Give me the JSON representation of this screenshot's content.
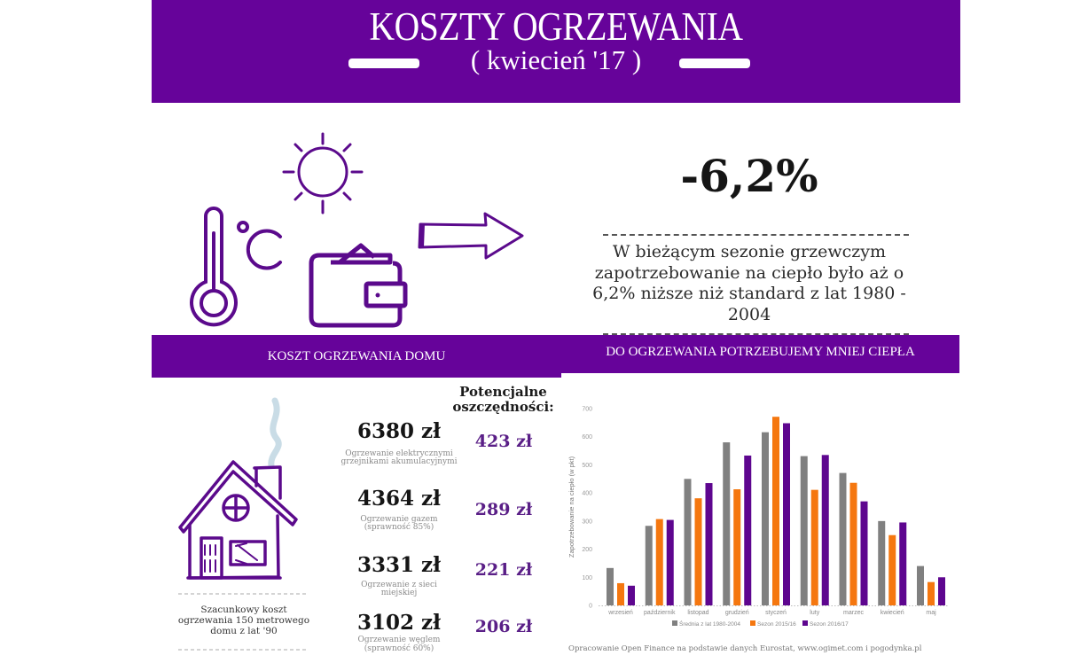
{
  "header": {
    "title": "KOSZTY OGRZEWANIA",
    "subtitle": "( kwiecień '17 )"
  },
  "icons": [
    "sun-icon",
    "thermometer-icon",
    "celsius-icon",
    "wallet-icon",
    "arrow-right-icon"
  ],
  "stat": {
    "value": "-6,2%",
    "description": "W bieżącym sezonie grzewczym zapotrzebowanie na ciepło było aż o 6,2% niższe niż standard z lat 1980 - 2004"
  },
  "sections": {
    "left_title": "KOSZT OGRZEWANIA DOMU",
    "right_title": "DO OGRZEWANIA POTRZEBUJEMY MNIEJ CIEPŁA"
  },
  "house": {
    "caption": "Szacunkowy koszt ogrzewania 150 metrowego domu z lat '90"
  },
  "costs": {
    "savings_header": "Potencjalne oszczędności:",
    "items": [
      {
        "value": "6380 zł",
        "desc_line1": "Ogrzewanie elektrycznymi",
        "desc_line2": "grzejnikami akumulacyjnymi",
        "saving": "423 zł"
      },
      {
        "value": "4364 zł",
        "desc_line1": "Ogrzewanie gazem",
        "desc_line2": "(sprawność 85%)",
        "saving": "289 zł"
      },
      {
        "value": "3331 zł",
        "desc_line1": "Ogrzewanie z sieci",
        "desc_line2": "miejskiej",
        "saving": "221 zł"
      },
      {
        "value": "3102 zł",
        "desc_line1": "Ogrzewanie węglem",
        "desc_line2": "(sprawność 60%)",
        "saving": "206 zł"
      }
    ]
  },
  "colors": {
    "brand_purple": "#66039a",
    "savings_purple": "#5a1f87",
    "series_gray": "#808080",
    "series_orange": "#f5770f",
    "series_purple": "#5e068f"
  },
  "chart_data": {
    "type": "bar",
    "title": "",
    "xlabel": "",
    "ylabel": "Zapotrzebowanie na ciepło (w pkt)",
    "ylim": [
      0,
      700
    ],
    "yticks": [
      0,
      100,
      200,
      300,
      400,
      500,
      600,
      700
    ],
    "grid": false,
    "legend_position": "bottom",
    "categories": [
      "wrzesień",
      "październik",
      "listopad",
      "grudzień",
      "styczeń",
      "luty",
      "marzec",
      "kwiecień",
      "maj"
    ],
    "series": [
      {
        "name": "Średnia z lat 1980-2004",
        "color": "#808080",
        "values": [
          133,
          283,
          450,
          580,
          616,
          531,
          471,
          300,
          140
        ]
      },
      {
        "name": "Sezon 2015/16",
        "color": "#f5770f",
        "values": [
          79,
          307,
          381,
          413,
          671,
          411,
          436,
          250,
          83
        ]
      },
      {
        "name": "Sezon 2016/17",
        "color": "#5e068f",
        "values": [
          70,
          304,
          435,
          533,
          648,
          535,
          370,
          295,
          100
        ]
      }
    ]
  },
  "source": "Opracowanie Open Finance na podstawie danych Eurostat, www.ogimet.com i pogodynka.pl"
}
